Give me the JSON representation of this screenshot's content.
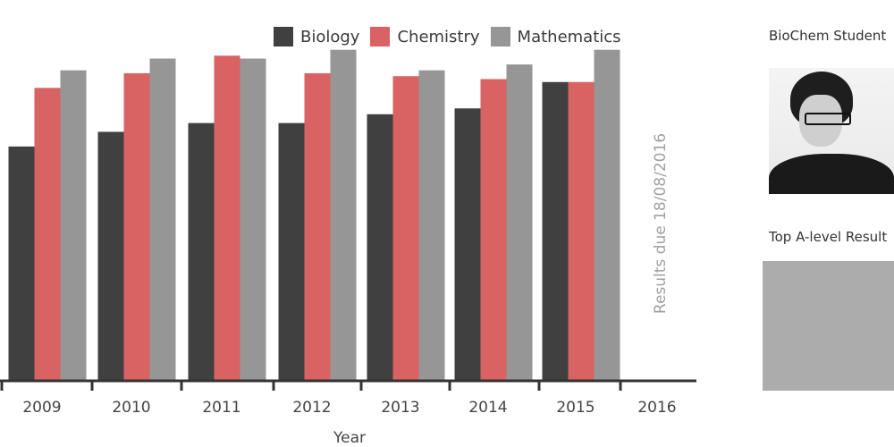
{
  "chart_data": {
    "type": "bar",
    "categories": [
      "2009",
      "2010",
      "2011",
      "2012",
      "2013",
      "2014",
      "2015",
      "2016"
    ],
    "series": [
      {
        "name": "Biology",
        "color": "#404040",
        "values": [
          80,
          85,
          88,
          88,
          91,
          93,
          102,
          null
        ]
      },
      {
        "name": "Chemistry",
        "color": "#d96263",
        "values": [
          100,
          105,
          111,
          105,
          104,
          103,
          102,
          null
        ]
      },
      {
        "name": "Mathematics",
        "color": "#969696",
        "values": [
          106,
          110,
          110,
          113,
          106,
          108,
          113,
          null
        ]
      }
    ],
    "xlabel": "Year",
    "ylabel": "",
    "ylim": [
      0,
      130
    ],
    "legend": "top",
    "grid": false
  },
  "annotation": {
    "text": "Results due 18/08/2016"
  },
  "sidebar": {
    "heading_1": "BioChem Student",
    "heading_2": "Top A-level Result",
    "photo_icon": "student-portrait"
  }
}
